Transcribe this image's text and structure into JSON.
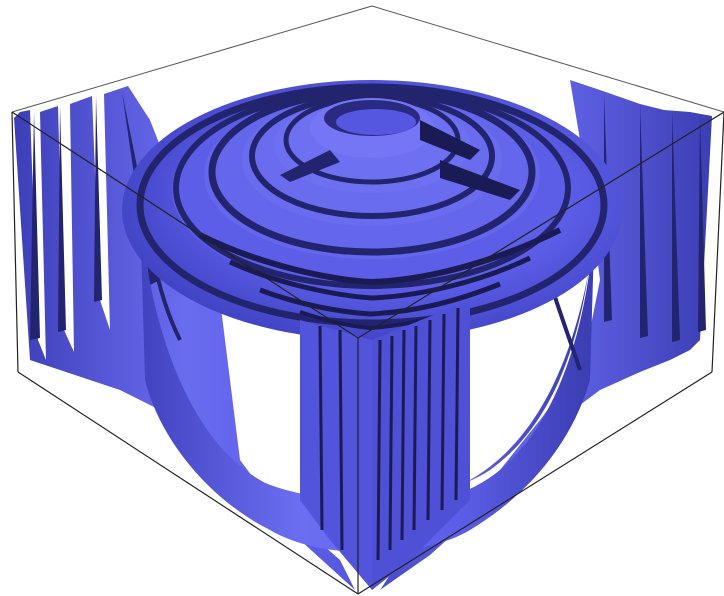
{
  "figure": {
    "kind": "3d-surface-plot",
    "description_visible_text": "",
    "colors": {
      "surface_light": "#6a6cf0",
      "surface_mid": "#5557e0",
      "surface_shadow": "#23246e",
      "surface_deep": "#1a1b55",
      "box_edge": "#333333",
      "background": "#ffffff"
    },
    "bounding_box": {
      "shown": true,
      "style": "wireframe"
    },
    "surface": {
      "pattern": "concentric-rings",
      "ring_count": 6
    }
  }
}
